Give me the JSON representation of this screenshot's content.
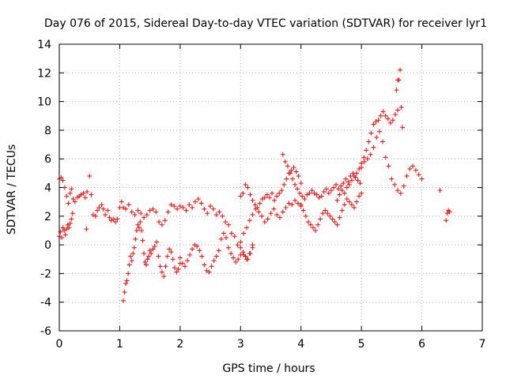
{
  "chart_data": {
    "type": "scatter",
    "title": "Day 076 of 2015, Sidereal Day-to-day VTEC variation (SDTVAR) for receiver lyr1",
    "xlabel": "GPS time / hours",
    "ylabel": "SDTVAR / TECUs",
    "xlim": [
      0,
      7
    ],
    "ylim": [
      -6,
      14
    ],
    "xticks": [
      "0",
      "1",
      "2",
      "3",
      "4",
      "5",
      "6",
      "7"
    ],
    "yticks": [
      "-6",
      "-4",
      "-2",
      "0",
      "2",
      "4",
      "6",
      "8",
      "10",
      "12",
      "14"
    ],
    "grid": true,
    "marker": "+",
    "color": "#ff0000",
    "series": [
      {
        "name": "SDTVAR",
        "x": [
          0.0,
          0.03,
          0.06,
          0.09,
          0.12,
          0.15,
          0.18,
          0.2,
          0.23,
          0.26,
          0.3,
          0.33,
          0.36,
          0.4,
          0.43,
          0.46,
          0.5,
          0.53,
          0.56,
          0.6,
          0.63,
          0.66,
          0.7,
          0.73,
          0.76,
          0.8,
          0.83,
          0.86,
          0.9,
          0.93,
          0.96,
          1.0,
          1.03,
          1.06,
          0.0,
          0.02,
          0.04,
          0.06,
          0.08,
          0.1,
          0.12,
          0.14,
          0.16,
          0.18,
          0.2,
          0.22,
          0.45,
          1.06,
          1.08,
          1.1,
          1.12,
          1.14,
          1.16,
          1.18,
          1.2,
          1.22,
          1.24,
          1.26,
          1.28,
          1.3,
          1.32,
          1.34,
          1.36,
          1.38,
          1.4,
          1.42,
          1.44,
          1.46,
          1.48,
          1.5,
          1.52,
          1.55,
          1.58,
          1.61,
          1.64,
          1.67,
          1.7,
          1.73,
          1.76,
          1.79,
          1.82,
          1.85,
          1.88,
          1.91,
          1.94,
          1.97,
          2.0,
          1.1,
          1.15,
          1.2,
          1.25,
          1.3,
          1.35,
          1.4,
          1.45,
          1.5,
          1.55,
          1.6,
          1.65,
          1.7,
          1.75,
          1.8,
          1.85,
          1.9,
          1.95,
          2.0,
          2.05,
          2.1,
          2.15,
          2.2,
          2.25,
          2.3,
          2.35,
          2.4,
          2.45,
          2.5,
          2.55,
          2.6,
          2.65,
          2.7,
          2.75,
          2.8,
          2.85,
          2.9,
          2.95,
          3.0,
          3.05,
          3.1,
          3.15,
          3.2,
          2.0,
          2.04,
          2.08,
          2.12,
          2.16,
          2.2,
          2.24,
          2.28,
          2.32,
          2.36,
          2.4,
          2.44,
          2.48,
          2.52,
          2.56,
          2.6,
          2.64,
          2.68,
          2.72,
          2.76,
          2.8,
          2.84,
          2.88,
          2.92,
          2.96,
          3.0,
          3.04,
          3.08,
          3.12,
          3.16,
          3.2,
          3.0,
          3.05,
          3.1,
          3.15,
          3.2,
          3.25,
          3.3,
          3.35,
          3.4,
          3.45,
          3.5,
          3.55,
          3.6,
          3.65,
          3.7,
          3.75,
          3.8,
          3.85,
          3.9,
          3.95,
          4.0,
          3.0,
          3.04,
          3.08,
          3.12,
          3.16,
          3.2,
          3.24,
          3.28,
          3.32,
          3.36,
          3.4,
          3.44,
          3.48,
          3.52,
          3.56,
          3.6,
          3.64,
          3.68,
          3.72,
          3.76,
          3.8,
          3.84,
          3.88,
          3.92,
          3.96,
          4.0,
          3.7,
          3.74,
          3.78,
          3.82,
          3.86,
          3.9,
          3.94,
          3.98,
          4.02,
          4.06,
          4.1,
          4.14,
          4.18,
          4.22,
          4.26,
          4.3,
          4.34,
          4.38,
          4.42,
          4.46,
          4.5,
          4.54,
          4.58,
          4.62,
          4.66,
          4.7,
          4.74,
          4.78,
          4.82,
          4.86,
          4.9,
          4.94,
          4.98,
          4.0,
          4.04,
          4.08,
          4.12,
          4.16,
          4.2,
          4.24,
          4.28,
          4.32,
          4.36,
          4.4,
          4.44,
          4.48,
          4.52,
          4.56,
          4.6,
          4.64,
          4.68,
          4.72,
          4.76,
          4.8,
          4.84,
          4.88,
          4.92,
          4.96,
          5.0,
          4.6,
          4.64,
          4.68,
          4.72,
          4.76,
          4.8,
          4.84,
          4.88,
          4.92,
          4.96,
          5.0,
          5.04,
          5.08,
          5.12,
          5.16,
          5.2,
          5.24,
          5.28,
          5.32,
          5.36,
          5.4,
          5.44,
          5.48,
          5.52,
          5.56,
          5.6,
          5.0,
          5.05,
          5.1,
          5.15,
          5.2,
          5.25,
          5.3,
          5.35,
          5.4,
          5.45,
          5.5,
          5.55,
          5.6,
          5.65,
          5.7,
          5.75,
          5.8,
          5.85,
          5.9,
          5.95,
          6.0,
          5.58,
          5.6,
          5.62,
          5.64,
          5.66,
          5.68,
          6.3,
          6.4,
          6.42,
          6.44,
          6.46
        ],
        "y": [
          4.6,
          4.7,
          4.5,
          4.0,
          3.4,
          2.9,
          3.6,
          3.9,
          3.2,
          3.0,
          3.3,
          3.4,
          3.5,
          3.6,
          3.3,
          3.7,
          4.8,
          3.5,
          2.1,
          2.0,
          2.4,
          2.6,
          2.8,
          2.5,
          2.1,
          2.4,
          1.9,
          1.7,
          1.8,
          1.6,
          1.8,
          2.6,
          3.0,
          2.6,
          0.6,
          0.9,
          0.5,
          1.2,
          1.0,
          0.7,
          1.1,
          1.4,
          1.2,
          1.5,
          1.8,
          2.2,
          1.1,
          -3.9,
          -3.3,
          -2.7,
          -2.5,
          -2.0,
          -1.4,
          -0.8,
          -1.1,
          -0.6,
          -0.2,
          0.4,
          1.0,
          1.4,
          1.2,
          1.6,
          1.0,
          0.3,
          -0.6,
          -1.2,
          -1.4,
          -1.0,
          -0.8,
          -0.4,
          -0.6,
          -0.3,
          -0.1,
          0.2,
          -0.8,
          -1.5,
          -1.9,
          -2.2,
          -1.5,
          -0.8,
          -0.3,
          -0.5,
          -1.0,
          -1.6,
          -1.9,
          -1.7,
          -1.3,
          2.5,
          2.8,
          2.3,
          2.1,
          2.4,
          2.2,
          1.9,
          2.1,
          2.4,
          2.5,
          2.3,
          1.6,
          1.4,
          1.7,
          2.3,
          2.8,
          2.7,
          2.5,
          2.7,
          2.6,
          2.4,
          2.8,
          2.6,
          3.0,
          3.2,
          2.9,
          2.5,
          2.2,
          2.7,
          2.5,
          2.1,
          2.3,
          2.0,
          1.6,
          1.4,
          0.8,
          0.6,
          0.0,
          -0.2,
          -0.7,
          -1.0,
          -0.6,
          0.0,
          -0.9,
          -1.3,
          -1.5,
          -1.1,
          -0.7,
          -0.3,
          0.0,
          -0.1,
          -0.4,
          -0.8,
          -1.4,
          -1.8,
          -1.9,
          -1.5,
          -1.1,
          -0.8,
          -0.4,
          0.4,
          0.8,
          0.5,
          -0.2,
          -0.6,
          -0.9,
          -1.2,
          -1.0,
          -0.7,
          -0.5,
          -0.8,
          -1.0,
          -0.6,
          -0.2,
          0.2,
          0.8,
          1.2,
          1.7,
          2.1,
          2.5,
          2.3,
          2.0,
          1.6,
          1.8,
          2.2,
          2.5,
          2.1,
          1.9,
          2.3,
          2.6,
          2.9,
          2.8,
          3.1,
          2.9,
          2.7,
          3.4,
          3.6,
          4.2,
          4.0,
          3.5,
          3.1,
          2.8,
          2.6,
          2.9,
          3.2,
          3.3,
          3.5,
          3.3,
          3.6,
          3.1,
          3.4,
          3.6,
          3.8,
          4.2,
          4.6,
          5.0,
          5.2,
          5.4,
          5.1,
          4.8,
          4.3,
          6.3,
          5.8,
          5.5,
          5.0,
          4.6,
          4.2,
          3.9,
          3.6,
          3.4,
          3.2,
          3.5,
          3.6,
          3.8,
          3.6,
          3.5,
          3.3,
          3.4,
          3.7,
          3.9,
          3.6,
          3.8,
          4.0,
          4.2,
          3.9,
          4.1,
          4.3,
          4.6,
          4.4,
          4.8,
          5.0,
          4.7,
          4.5,
          4.3,
          2.8,
          2.4,
          2.0,
          1.6,
          1.4,
          1.2,
          1.0,
          1.4,
          1.8,
          2.2,
          2.4,
          2.2,
          2.0,
          1.8,
          1.6,
          1.4,
          1.9,
          2.4,
          2.8,
          3.2,
          3.0,
          2.8,
          2.6,
          3.0,
          3.4,
          3.6,
          3.1,
          3.5,
          3.8,
          3.6,
          4.0,
          4.2,
          4.5,
          4.8,
          5.0,
          5.3,
          5.7,
          6.1,
          6.6,
          7.2,
          7.8,
          8.4,
          8.6,
          8.7,
          9.0,
          9.3,
          9.0,
          8.8,
          8.5,
          8.7,
          9.1,
          9.4,
          5.4,
          5.8,
          6.0,
          6.3,
          6.8,
          7.5,
          7.9,
          7.2,
          6.1,
          5.5,
          4.6,
          4.2,
          3.8,
          3.6,
          4.1,
          4.8,
          5.3,
          5.5,
          5.2,
          4.9,
          4.6,
          10.8,
          11.5,
          11.5,
          12.2,
          9.6,
          8.2,
          3.8,
          1.7,
          2.2,
          2.4,
          2.3
        ]
      }
    ]
  }
}
